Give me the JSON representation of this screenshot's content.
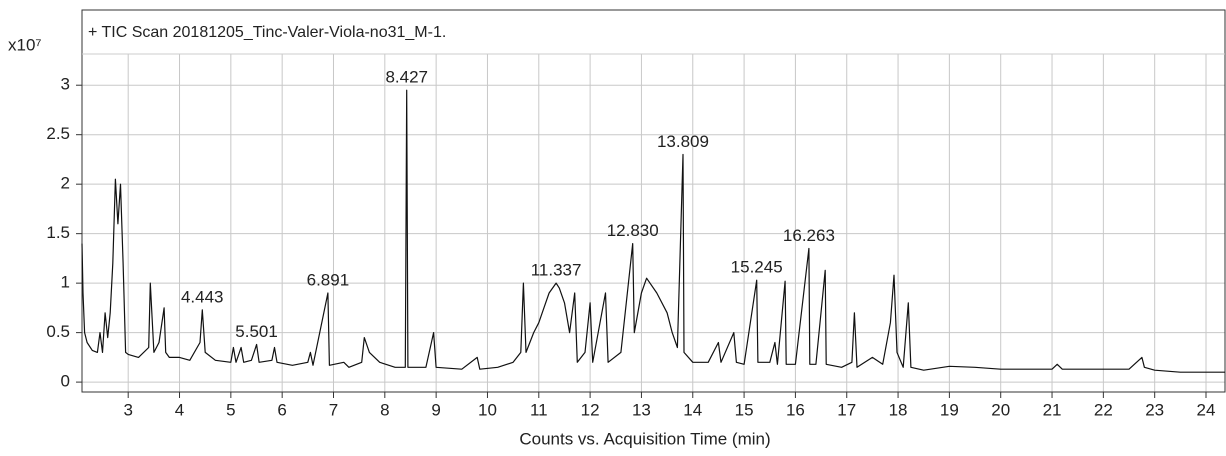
{
  "chart_data": {
    "type": "line",
    "title": "+ TIC Scan 20181205_Tinc-Valer-Viola-no31_M-1.",
    "x_label": "Counts vs. Acquisition Time (min)",
    "y_multiplier": "x10⁷",
    "xlim": [
      2.1,
      24.37
    ],
    "ylim": [
      -0.1,
      3.76
    ],
    "xticks": [
      3,
      4,
      5,
      6,
      7,
      8,
      9,
      10,
      11,
      12,
      13,
      14,
      15,
      16,
      17,
      18,
      19,
      20,
      21,
      22,
      23,
      24
    ],
    "yticks": [
      0,
      0.5,
      1,
      1.5,
      2,
      2.5,
      3
    ],
    "grid": true,
    "series": [
      {
        "color": "#111111",
        "x": [
          2.1,
          2.12,
          2.15,
          2.2,
          2.3,
          2.4,
          2.45,
          2.5,
          2.55,
          2.6,
          2.65,
          2.7,
          2.75,
          2.8,
          2.85,
          2.9,
          2.95,
          3.0,
          3.2,
          3.4,
          3.43,
          3.5,
          3.6,
          3.7,
          3.73,
          3.8,
          4.0,
          4.2,
          4.4,
          4.443,
          4.5,
          4.7,
          5.0,
          5.05,
          5.1,
          5.2,
          5.25,
          5.4,
          5.501,
          5.55,
          5.8,
          5.85,
          5.9,
          6.2,
          6.5,
          6.55,
          6.6,
          6.891,
          6.92,
          7.2,
          7.3,
          7.55,
          7.6,
          7.7,
          7.9,
          8.2,
          8.4,
          8.427,
          8.45,
          8.8,
          8.95,
          9.0,
          9.5,
          9.8,
          9.85,
          10.2,
          10.5,
          10.65,
          10.7,
          10.75,
          10.9,
          11.0,
          11.1,
          11.2,
          11.337,
          11.4,
          11.5,
          11.6,
          11.7,
          11.75,
          11.9,
          12.0,
          12.05,
          12.3,
          12.35,
          12.6,
          12.83,
          12.86,
          13.0,
          13.1,
          13.3,
          13.5,
          13.6,
          13.7,
          13.809,
          13.83,
          14.0,
          14.3,
          14.5,
          14.55,
          14.8,
          14.85,
          15.0,
          15.245,
          15.27,
          15.5,
          15.6,
          15.65,
          15.8,
          15.82,
          16.0,
          16.263,
          16.28,
          16.4,
          16.58,
          16.6,
          16.9,
          17.1,
          17.15,
          17.2,
          17.5,
          17.7,
          17.85,
          17.92,
          17.98,
          18.1,
          18.2,
          18.25,
          18.5,
          19.0,
          19.5,
          20.0,
          20.5,
          21.0,
          21.1,
          21.2,
          22.0,
          22.5,
          22.75,
          22.8,
          23.0,
          23.5,
          24.0,
          24.37
        ],
        "values": [
          1.4,
          0.9,
          0.5,
          0.4,
          0.32,
          0.3,
          0.5,
          0.3,
          0.7,
          0.45,
          0.7,
          1.2,
          2.05,
          1.6,
          2.0,
          1.2,
          0.3,
          0.28,
          0.25,
          0.35,
          1.0,
          0.3,
          0.4,
          0.75,
          0.3,
          0.25,
          0.25,
          0.22,
          0.4,
          0.73,
          0.3,
          0.22,
          0.2,
          0.35,
          0.2,
          0.35,
          0.2,
          0.22,
          0.38,
          0.2,
          0.22,
          0.35,
          0.2,
          0.17,
          0.2,
          0.3,
          0.17,
          0.9,
          0.17,
          0.2,
          0.15,
          0.2,
          0.45,
          0.3,
          0.2,
          0.15,
          0.15,
          2.95,
          0.15,
          0.15,
          0.5,
          0.15,
          0.13,
          0.25,
          0.13,
          0.15,
          0.2,
          0.3,
          1.0,
          0.3,
          0.5,
          0.6,
          0.75,
          0.9,
          1.0,
          0.95,
          0.8,
          0.5,
          0.9,
          0.2,
          0.3,
          0.8,
          0.2,
          0.9,
          0.2,
          0.3,
          1.4,
          0.5,
          0.9,
          1.05,
          0.9,
          0.7,
          0.5,
          0.35,
          2.3,
          0.3,
          0.2,
          0.2,
          0.4,
          0.2,
          0.5,
          0.2,
          0.18,
          1.03,
          0.2,
          0.2,
          0.4,
          0.18,
          1.02,
          0.18,
          0.18,
          1.35,
          0.18,
          0.18,
          1.13,
          0.18,
          0.15,
          0.2,
          0.7,
          0.15,
          0.25,
          0.18,
          0.6,
          1.08,
          0.3,
          0.15,
          0.8,
          0.15,
          0.12,
          0.16,
          0.15,
          0.13,
          0.13,
          0.13,
          0.18,
          0.13,
          0.13,
          0.13,
          0.25,
          0.15,
          0.12,
          0.1,
          0.1,
          0.1
        ]
      }
    ],
    "annotations": [
      {
        "text": "4.443",
        "x": 4.443,
        "y": 0.73
      },
      {
        "text": "5.501",
        "x": 5.501,
        "y": 0.38
      },
      {
        "text": "6.891",
        "x": 6.891,
        "y": 0.9
      },
      {
        "text": "8.427",
        "x": 8.427,
        "y": 2.95
      },
      {
        "text": "11.337",
        "x": 11.337,
        "y": 1.0
      },
      {
        "text": "12.830",
        "x": 12.83,
        "y": 1.4
      },
      {
        "text": "13.809",
        "x": 13.809,
        "y": 2.3
      },
      {
        "text": "15.245",
        "x": 15.245,
        "y": 1.03
      },
      {
        "text": "16.263",
        "x": 16.263,
        "y": 1.35
      }
    ]
  }
}
